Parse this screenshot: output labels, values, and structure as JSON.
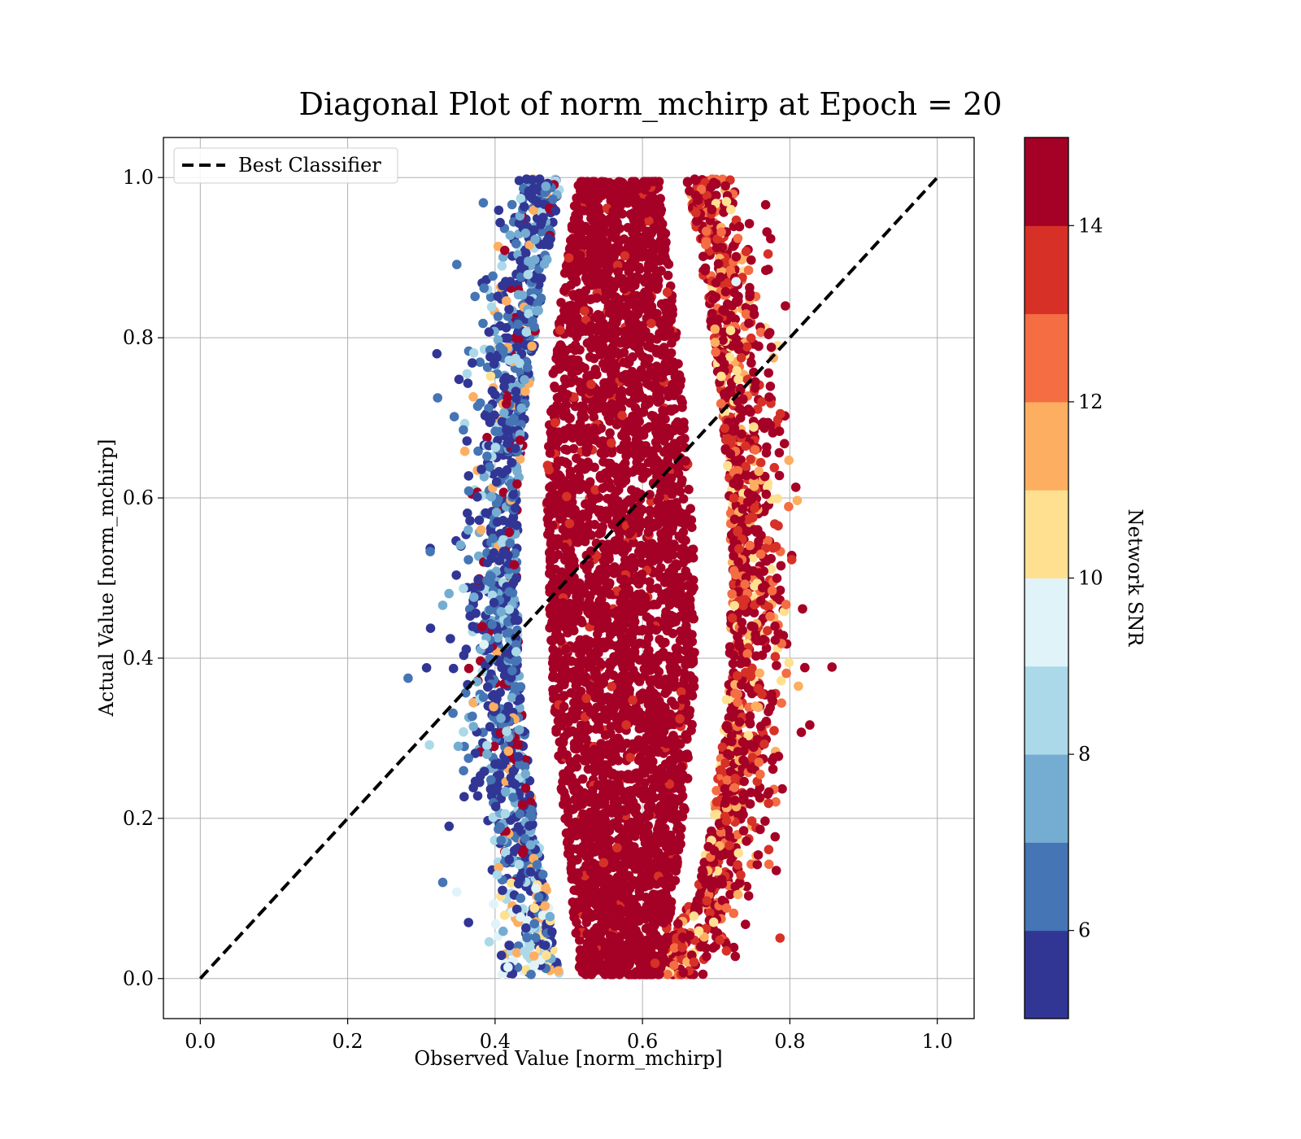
{
  "chart_data": {
    "type": "scatter",
    "title": "Diagonal Plot of norm_mchirp at Epoch = 20",
    "xlabel": "Observed Value [norm_mchirp]",
    "ylabel": "Actual Value [norm_mchirp]",
    "xlim": [
      -0.05,
      1.05
    ],
    "ylim": [
      -0.05,
      1.05
    ],
    "xticks": [
      0.0,
      0.2,
      0.4,
      0.6,
      0.8,
      1.0
    ],
    "yticks": [
      0.0,
      0.2,
      0.4,
      0.6,
      0.8,
      1.0
    ],
    "xtick_labels": [
      "0.0",
      "0.2",
      "0.4",
      "0.6",
      "0.8",
      "1.0"
    ],
    "ytick_labels": [
      "0.0",
      "0.2",
      "0.4",
      "0.6",
      "0.8",
      "1.0"
    ],
    "grid": true,
    "legend": {
      "placement": "upper-left",
      "entries": [
        {
          "label": "Best Classifier",
          "style": "black dashed line"
        }
      ]
    },
    "reference_line": {
      "name": "Best Classifier",
      "x": [
        0.0,
        1.0
      ],
      "y": [
        0.0,
        1.0
      ],
      "color": "#000000",
      "dash": true
    },
    "colorbar": {
      "label": "Network SNR",
      "min": 5,
      "max": 15,
      "ticks": [
        6,
        8,
        10,
        12,
        14
      ],
      "tick_labels": [
        "6",
        "8",
        "10",
        "12",
        "14"
      ],
      "colors": [
        "#313695",
        "#4575b4",
        "#74add1",
        "#abd9e9",
        "#e0f3f8",
        "#fee090",
        "#fdae61",
        "#f46d43",
        "#d73027",
        "#a50026"
      ]
    },
    "points_description_is_generated": true,
    "points": [
      [
        0.321,
        0.78,
        5.5
      ],
      [
        0.312,
        0.537,
        5.5
      ],
      [
        0.312,
        0.533,
        6.5
      ],
      [
        0.307,
        0.388,
        5.5
      ],
      [
        0.282,
        0.375,
        6.5
      ],
      [
        0.322,
        0.725,
        6.5
      ],
      [
        0.329,
        0.466,
        7.5
      ],
      [
        0.329,
        0.12,
        6.5
      ],
      [
        0.35,
        0.29,
        7.5
      ],
      [
        0.351,
        0.748,
        5.5
      ],
      [
        0.357,
        0.685,
        6.5
      ],
      [
        0.358,
        0.227,
        5.5
      ],
      [
        0.364,
        0.275,
        6.5
      ],
      [
        0.364,
        0.07,
        5.5
      ],
      [
        0.362,
        0.755,
        8.5
      ],
      [
        0.371,
        0.781,
        8.5
      ],
      [
        0.357,
        0.487,
        8.5
      ],
      [
        0.348,
        0.108,
        9.5
      ],
      [
        0.385,
        0.862,
        6.5
      ],
      [
        0.397,
        0.877,
        6.5
      ],
      [
        0.389,
        0.652,
        6.5
      ],
      [
        0.389,
        0.497,
        6.5
      ],
      [
        0.396,
        0.442,
        6.5
      ],
      [
        0.379,
        0.245,
        5.5
      ],
      [
        0.39,
        0.364,
        5.5
      ],
      [
        0.389,
        0.291,
        8.5
      ],
      [
        0.389,
        0.28,
        7.5
      ],
      [
        0.394,
        0.752,
        10.5
      ],
      [
        0.385,
        0.417,
        9.5
      ],
      [
        0.398,
        0.093,
        9.5
      ],
      [
        0.402,
        0.62,
        5.5
      ],
      [
        0.403,
        0.57,
        5.5
      ],
      [
        0.407,
        0.189,
        6.5
      ],
      [
        0.408,
        0.325,
        7.5
      ],
      [
        0.404,
        0.053,
        9.5
      ],
      [
        0.412,
        0.747,
        5.5
      ],
      [
        0.411,
        0.059,
        7.5
      ],
      [
        0.413,
        0.079,
        10.5
      ],
      [
        0.772,
        0.726,
        14.5
      ],
      [
        0.78,
        0.177,
        14.5
      ],
      [
        0.775,
        0.355,
        14.5
      ],
      [
        0.762,
        0.355,
        13.5
      ],
      [
        0.757,
        0.362,
        13.5
      ],
      [
        0.758,
        0.27,
        12.5
      ],
      [
        0.753,
        0.66,
        12.5
      ],
      [
        0.768,
        0.321,
        14.5
      ],
      [
        0.743,
        0.595,
        14.5
      ],
      [
        0.741,
        0.395,
        14.5
      ],
      [
        0.734,
        0.775,
        13.5
      ],
      [
        0.725,
        0.222,
        14.5
      ],
      [
        0.718,
        0.166,
        13.5
      ],
      [
        0.7,
        0.052,
        14.5
      ],
      [
        0.705,
        0.048,
        13.5
      ],
      [
        0.714,
        0.088,
        12.5
      ],
      [
        0.7,
        0.992,
        14.5
      ],
      [
        0.714,
        0.97,
        10.5
      ],
      [
        0.72,
        0.96,
        10.5
      ],
      [
        0.707,
        0.932,
        12.5
      ],
      [
        0.727,
        0.87,
        9.5
      ],
      [
        0.73,
        0.748,
        10.5
      ],
      [
        0.733,
        0.735,
        14.5
      ],
      [
        0.724,
        0.6,
        13.5
      ],
      [
        0.73,
        0.52,
        14.5
      ],
      [
        0.722,
        0.45,
        13.5
      ],
      [
        0.729,
        0.355,
        12.5
      ]
    ]
  }
}
